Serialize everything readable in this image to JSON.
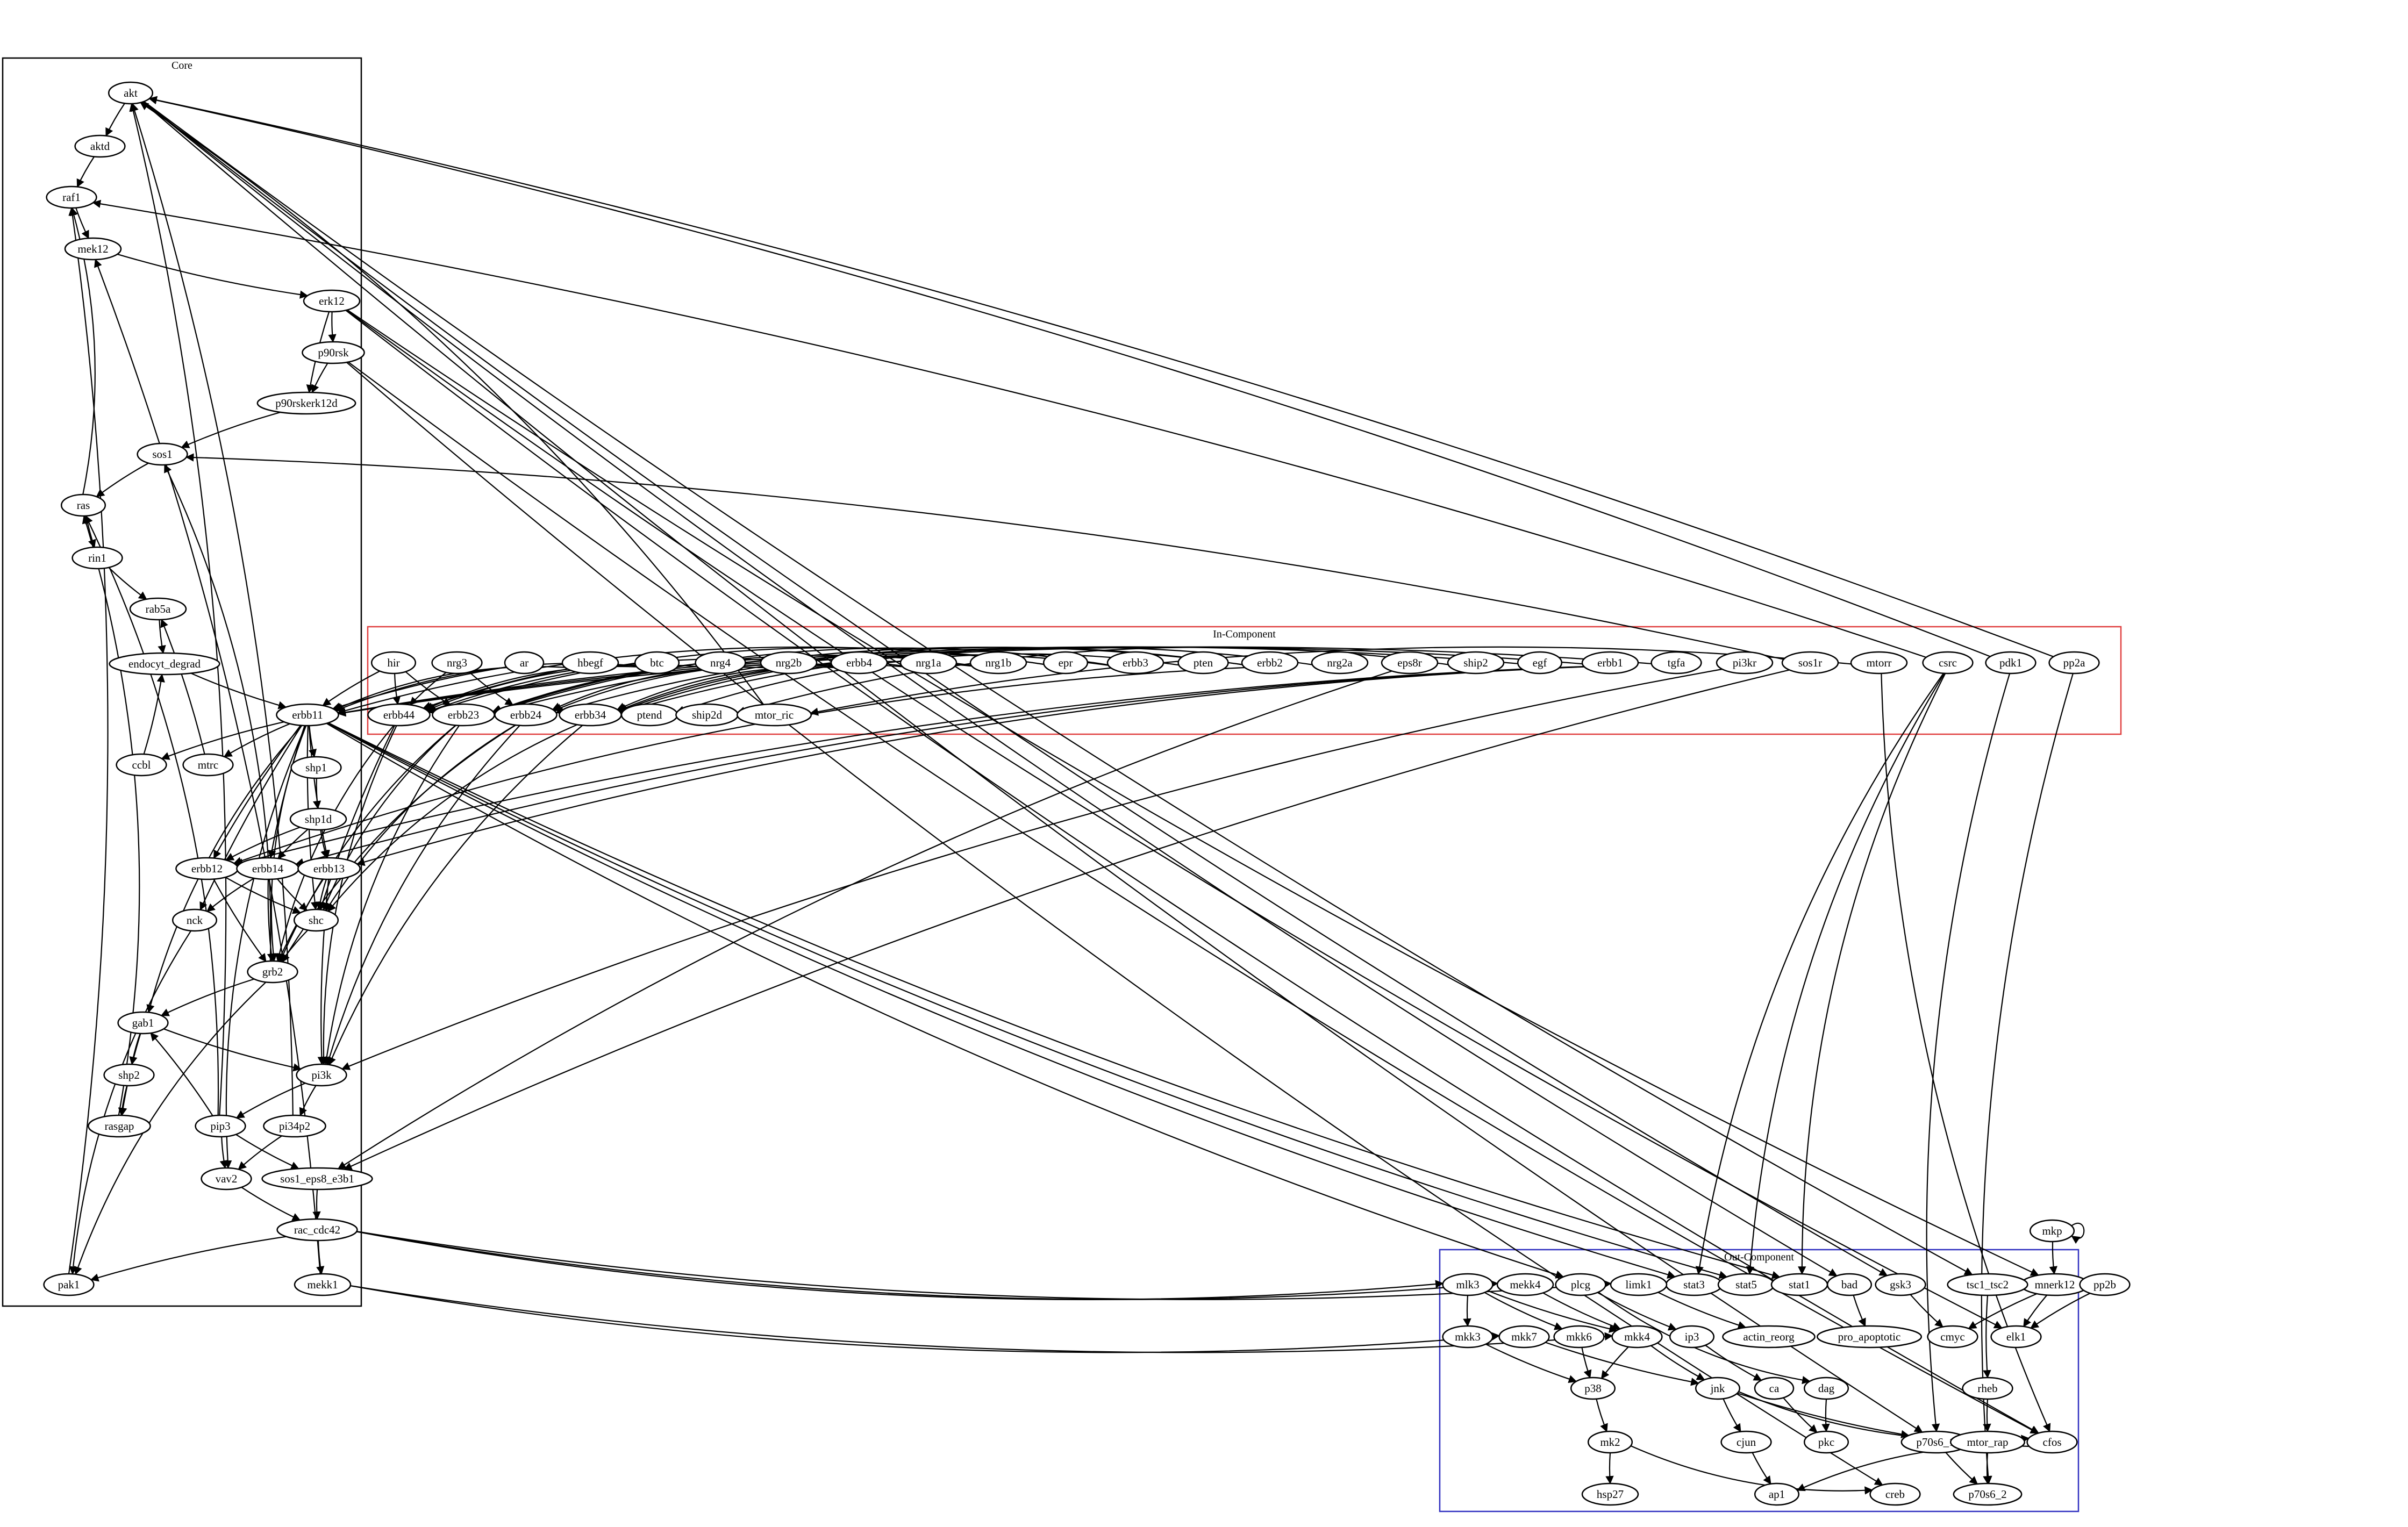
{
  "clusters": [
    {
      "id": "core",
      "label": "Core",
      "color": "#000000"
    },
    {
      "id": "in",
      "label": "In-Component",
      "color": "#e04040"
    },
    {
      "id": "out",
      "label": "Out-Component",
      "color": "#3030c0"
    }
  ],
  "nodes": [
    {
      "id": "akt",
      "label": "akt"
    },
    {
      "id": "aktd",
      "label": "aktd"
    },
    {
      "id": "raf1",
      "label": "raf1"
    },
    {
      "id": "mek12",
      "label": "mek12"
    },
    {
      "id": "erk12",
      "label": "erk12"
    },
    {
      "id": "p90rsk",
      "label": "p90rsk"
    },
    {
      "id": "p90rskerk12d",
      "label": "p90rskerk12d"
    },
    {
      "id": "sos1",
      "label": "sos1"
    },
    {
      "id": "ras",
      "label": "ras"
    },
    {
      "id": "rin1",
      "label": "rin1"
    },
    {
      "id": "rab5a",
      "label": "rab5a"
    },
    {
      "id": "endocyt_degrad",
      "label": "endocyt_degrad"
    },
    {
      "id": "erbb11",
      "label": "erbb11"
    },
    {
      "id": "cbl",
      "label": "ccbl"
    },
    {
      "id": "mtrc",
      "label": "mtrc"
    },
    {
      "id": "shp1",
      "label": "shp1"
    },
    {
      "id": "shp1d",
      "label": "shp1d"
    },
    {
      "id": "erbb12",
      "label": "erbb12"
    },
    {
      "id": "erbb14",
      "label": "erbb14"
    },
    {
      "id": "erbb13",
      "label": "erbb13"
    },
    {
      "id": "nck",
      "label": "nck"
    },
    {
      "id": "shc",
      "label": "shc"
    },
    {
      "id": "grb2",
      "label": "grb2"
    },
    {
      "id": "gab1",
      "label": "gab1"
    },
    {
      "id": "shp2",
      "label": "shp2"
    },
    {
      "id": "rasgap",
      "label": "rasgap"
    },
    {
      "id": "pi3k",
      "label": "pi3k"
    },
    {
      "id": "pip3",
      "label": "pip3"
    },
    {
      "id": "pi34p2",
      "label": "pi34p2"
    },
    {
      "id": "vav2",
      "label": "vav2"
    },
    {
      "id": "sos1_eps8_e3b1",
      "label": "sos1_eps8_e3b1"
    },
    {
      "id": "rac_cdc42",
      "label": "rac_cdc42"
    },
    {
      "id": "pak1",
      "label": "pak1"
    },
    {
      "id": "mekk1",
      "label": "mekk1"
    },
    {
      "id": "hir",
      "label": "hir"
    },
    {
      "id": "nrg3",
      "label": "nrg3"
    },
    {
      "id": "ar",
      "label": "ar"
    },
    {
      "id": "hbegf",
      "label": "hbegf"
    },
    {
      "id": "btc",
      "label": "btc"
    },
    {
      "id": "nrg4",
      "label": "nrg4"
    },
    {
      "id": "nrg2b",
      "label": "nrg2b"
    },
    {
      "id": "erbb4",
      "label": "erbb4"
    },
    {
      "id": "nrg1a",
      "label": "nrg1a"
    },
    {
      "id": "nrg1b",
      "label": "nrg1b"
    },
    {
      "id": "epr",
      "label": "epr"
    },
    {
      "id": "erbb3",
      "label": "erbb3"
    },
    {
      "id": "pten",
      "label": "pten"
    },
    {
      "id": "erbb2",
      "label": "erbb2"
    },
    {
      "id": "nrg2a",
      "label": "nrg2a"
    },
    {
      "id": "eps8r",
      "label": "eps8r"
    },
    {
      "id": "ship2",
      "label": "ship2"
    },
    {
      "id": "egf",
      "label": "egf"
    },
    {
      "id": "erbb1",
      "label": "erbb1"
    },
    {
      "id": "tgfa",
      "label": "tgfa"
    },
    {
      "id": "pi3kr",
      "label": "pi3kr"
    },
    {
      "id": "sos1r",
      "label": "sos1r"
    },
    {
      "id": "mtorr",
      "label": "mtorr"
    },
    {
      "id": "csrc",
      "label": "csrc"
    },
    {
      "id": "pdk1",
      "label": "pdk1"
    },
    {
      "id": "pp2a",
      "label": "pp2a"
    },
    {
      "id": "erbb44",
      "label": "erbb44"
    },
    {
      "id": "erbb23",
      "label": "erbb23"
    },
    {
      "id": "erbb24",
      "label": "erbb24"
    },
    {
      "id": "erbb34",
      "label": "erbb34"
    },
    {
      "id": "ptend",
      "label": "ptend"
    },
    {
      "id": "ship2d",
      "label": "ship2d"
    },
    {
      "id": "mtor_ric",
      "label": "mtor_ric"
    },
    {
      "id": "mkp",
      "label": "mkp"
    },
    {
      "id": "stat3",
      "label": "stat3"
    },
    {
      "id": "stat5",
      "label": "stat5"
    },
    {
      "id": "stat1",
      "label": "stat1"
    },
    {
      "id": "bad",
      "label": "bad"
    },
    {
      "id": "gsk3",
      "label": "gsk3"
    },
    {
      "id": "mekk4",
      "label": "mekk4"
    },
    {
      "id": "plcg",
      "label": "plcg"
    },
    {
      "id": "limk1",
      "label": "limk1"
    },
    {
      "id": "mlk3",
      "label": "mlk3"
    },
    {
      "id": "mkk3",
      "label": "mkk3"
    },
    {
      "id": "mkk7",
      "label": "mkk7"
    },
    {
      "id": "mkk6",
      "label": "mkk6"
    },
    {
      "id": "mkk4",
      "label": "mkk4"
    },
    {
      "id": "ip3",
      "label": "ip3"
    },
    {
      "id": "actin_reorg",
      "label": "actin_reorg"
    },
    {
      "id": "pro_apoptotic",
      "label": "pro_apoptotic"
    },
    {
      "id": "mnerk12",
      "label": "mnerk12"
    },
    {
      "id": "tsc1_tsc2",
      "label": "tsc1_tsc2"
    },
    {
      "id": "pp2b",
      "label": "pp2b"
    },
    {
      "id": "cmyc",
      "label": "cmyc"
    },
    {
      "id": "elk1",
      "label": "elk1"
    },
    {
      "id": "p38",
      "label": "p38"
    },
    {
      "id": "jnk",
      "label": "jnk"
    },
    {
      "id": "ca",
      "label": "ca"
    },
    {
      "id": "dag",
      "label": "dag"
    },
    {
      "id": "rheb",
      "label": "rheb"
    },
    {
      "id": "mk2",
      "label": "mk2"
    },
    {
      "id": "cjun",
      "label": "cjun"
    },
    {
      "id": "pkc",
      "label": "pkc"
    },
    {
      "id": "p70s6_1",
      "label": "p70s6_1"
    },
    {
      "id": "mtor_rap",
      "label": "mtor_rap"
    },
    {
      "id": "cfos",
      "label": "cfos"
    },
    {
      "id": "hsp27",
      "label": "hsp27"
    },
    {
      "id": "ap1",
      "label": "ap1"
    },
    {
      "id": "creb",
      "label": "creb"
    },
    {
      "id": "p70s6_2",
      "label": "p70s6_2"
    }
  ],
  "edges": [
    [
      "akt",
      "aktd"
    ],
    [
      "aktd",
      "raf1"
    ],
    [
      "raf1",
      "mek12"
    ],
    [
      "mek12",
      "erk12"
    ],
    [
      "erk12",
      "p90rsk"
    ],
    [
      "erk12",
      "p90rskerk12d"
    ],
    [
      "p90rsk",
      "p90rskerk12d"
    ],
    [
      "p90rskerk12d",
      "sos1"
    ],
    [
      "sos1",
      "ras"
    ],
    [
      "ras",
      "rin1"
    ],
    [
      "rin1",
      "rab5a"
    ],
    [
      "rab5a",
      "endocyt_degrad"
    ],
    [
      "endocyt_degrad",
      "erbb11"
    ],
    [
      "ras",
      "raf1"
    ],
    [
      "erbb11",
      "cbl"
    ],
    [
      "cbl",
      "endocyt_degrad"
    ],
    [
      "erbb11",
      "mtrc"
    ],
    [
      "mtrc",
      "rab5a"
    ],
    [
      "erbb11",
      "shp1"
    ],
    [
      "shp1",
      "shp1d"
    ],
    [
      "shp1d",
      "erbb12"
    ],
    [
      "shp1d",
      "erbb13"
    ],
    [
      "shp1d",
      "erbb14"
    ],
    [
      "erbb11",
      "erbb12"
    ],
    [
      "erbb11",
      "erbb13"
    ],
    [
      "erbb11",
      "erbb14"
    ],
    [
      "erbb11",
      "nck"
    ],
    [
      "erbb11",
      "shc"
    ],
    [
      "erbb11",
      "grb2"
    ],
    [
      "erbb11",
      "gab1"
    ],
    [
      "erbb11",
      "vav2"
    ],
    [
      "erbb12",
      "shc"
    ],
    [
      "erbb12",
      "grb2"
    ],
    [
      "erbb14",
      "nck"
    ],
    [
      "erbb14",
      "shc"
    ],
    [
      "erbb14",
      "grb2"
    ],
    [
      "erbb13",
      "shc"
    ],
    [
      "erbb13",
      "grb2"
    ],
    [
      "erbb13",
      "pi3k"
    ],
    [
      "shc",
      "grb2"
    ],
    [
      "nck",
      "pak1"
    ],
    [
      "grb2",
      "gab1"
    ],
    [
      "grb2",
      "sos1"
    ],
    [
      "grb2",
      "pak1"
    ],
    [
      "gab1",
      "shp2"
    ],
    [
      "gab1",
      "pi3k"
    ],
    [
      "gab1",
      "rasgap"
    ],
    [
      "shp2",
      "rasgap"
    ],
    [
      "rasgap",
      "ras"
    ],
    [
      "pi3k",
      "pip3"
    ],
    [
      "pi3k",
      "pi34p2"
    ],
    [
      "pip3",
      "vav2"
    ],
    [
      "pip3",
      "gab1"
    ],
    [
      "pip3",
      "akt"
    ],
    [
      "pip3",
      "sos1_eps8_e3b1"
    ],
    [
      "pi34p2",
      "vav2"
    ],
    [
      "pi34p2",
      "akt"
    ],
    [
      "vav2",
      "rac_cdc42"
    ],
    [
      "sos1_eps8_e3b1",
      "rac_cdc42"
    ],
    [
      "rac_cdc42",
      "pak1"
    ],
    [
      "rac_cdc42",
      "mekk1"
    ],
    [
      "pak1",
      "raf1"
    ],
    [
      "mekk1",
      "mek12"
    ],
    [
      "pip3",
      "ras"
    ],
    [
      "hir",
      "erbb11"
    ],
    [
      "hir",
      "erbb44"
    ],
    [
      "hir",
      "erbb23"
    ],
    [
      "nrg3",
      "erbb44"
    ],
    [
      "nrg3",
      "erbb24"
    ],
    [
      "ar",
      "erbb11"
    ],
    [
      "hbegf",
      "erbb11"
    ],
    [
      "hbegf",
      "erbb44"
    ],
    [
      "btc",
      "erbb11"
    ],
    [
      "btc",
      "erbb44"
    ],
    [
      "nrg4",
      "erbb44"
    ],
    [
      "nrg2b",
      "erbb24"
    ],
    [
      "erbb4",
      "erbb44"
    ],
    [
      "erbb4",
      "erbb24"
    ],
    [
      "erbb4",
      "erbb34"
    ],
    [
      "nrg1a",
      "erbb23"
    ],
    [
      "nrg1a",
      "erbb34"
    ],
    [
      "nrg1b",
      "erbb23"
    ],
    [
      "nrg1b",
      "erbb34"
    ],
    [
      "epr",
      "erbb11"
    ],
    [
      "epr",
      "erbb44"
    ],
    [
      "erbb3",
      "erbb23"
    ],
    [
      "erbb3",
      "erbb34"
    ],
    [
      "pten",
      "ptend"
    ],
    [
      "erbb2",
      "erbb23"
    ],
    [
      "erbb2",
      "erbb24"
    ],
    [
      "erbb2",
      "erbb12"
    ],
    [
      "nrg2a",
      "erbb34"
    ],
    [
      "eps8r",
      "sos1_eps8_e3b1"
    ],
    [
      "ship2",
      "ship2d"
    ],
    [
      "egf",
      "erbb11"
    ],
    [
      "erbb1",
      "erbb11"
    ],
    [
      "erbb1",
      "erbb12"
    ],
    [
      "erbb1",
      "erbb13"
    ],
    [
      "erbb1",
      "erbb14"
    ],
    [
      "tgfa",
      "erbb11"
    ],
    [
      "pi3kr",
      "pi3k"
    ],
    [
      "sos1r",
      "sos1"
    ],
    [
      "sos1r",
      "sos1_eps8_e3b1"
    ],
    [
      "mtorr",
      "mtor_ric"
    ],
    [
      "mtorr",
      "cfos"
    ],
    [
      "csrc",
      "raf1"
    ],
    [
      "csrc",
      "stat3"
    ],
    [
      "csrc",
      "stat5"
    ],
    [
      "csrc",
      "stat1"
    ],
    [
      "pdk1",
      "akt"
    ],
    [
      "pdk1",
      "p70s6_1"
    ],
    [
      "pp2a",
      "akt"
    ],
    [
      "pp2a",
      "p70s6_2"
    ],
    [
      "mtor_ric",
      "akt"
    ],
    [
      "erbb44",
      "shc"
    ],
    [
      "erbb44",
      "grb2"
    ],
    [
      "erbb44",
      "pi3k"
    ],
    [
      "erbb23",
      "pi3k"
    ],
    [
      "erbb23",
      "shc"
    ],
    [
      "erbb23",
      "grb2"
    ],
    [
      "erbb24",
      "shc"
    ],
    [
      "erbb24",
      "grb2"
    ],
    [
      "erbb24",
      "pi3k"
    ],
    [
      "erbb34",
      "pi3k"
    ],
    [
      "erbb34",
      "shc"
    ],
    [
      "erbb11",
      "stat3"
    ],
    [
      "erbb11",
      "stat5"
    ],
    [
      "erbb11",
      "stat1"
    ],
    [
      "erbb11",
      "plcg"
    ],
    [
      "erk12",
      "cfos"
    ],
    [
      "erk12",
      "mnerk12"
    ],
    [
      "erk12",
      "elk1"
    ],
    [
      "p90rsk",
      "creb"
    ],
    [
      "p90rsk",
      "cfos"
    ],
    [
      "akt",
      "bad"
    ],
    [
      "akt",
      "gsk3"
    ],
    [
      "akt",
      "tsc1_tsc2"
    ],
    [
      "akt",
      "p70s6_1"
    ],
    [
      "mkp",
      "mkp"
    ],
    [
      "mkp",
      "mnerk12"
    ],
    [
      "rac_cdc42",
      "mekk4"
    ],
    [
      "rac_cdc42",
      "mlk3"
    ],
    [
      "rac_cdc42",
      "limk1"
    ],
    [
      "mekk1",
      "mkk4"
    ],
    [
      "mekk1",
      "mkk7"
    ],
    [
      "mlk3",
      "mkk3"
    ],
    [
      "mlk3",
      "mkk6"
    ],
    [
      "mlk3",
      "mkk4"
    ],
    [
      "mekk4",
      "mkk4"
    ],
    [
      "mkk3",
      "p38"
    ],
    [
      "mkk6",
      "p38"
    ],
    [
      "mkk4",
      "p38"
    ],
    [
      "mkk4",
      "jnk"
    ],
    [
      "mkk7",
      "jnk"
    ],
    [
      "plcg",
      "ip3"
    ],
    [
      "plcg",
      "dag"
    ],
    [
      "ip3",
      "ca"
    ],
    [
      "ca",
      "pkc"
    ],
    [
      "dag",
      "pkc"
    ],
    [
      "limk1",
      "actin_reorg"
    ],
    [
      "bad",
      "pro_apoptotic"
    ],
    [
      "gsk3",
      "cmyc"
    ],
    [
      "mnerk12",
      "cmyc"
    ],
    [
      "mnerk12",
      "elk1"
    ],
    [
      "tsc1_tsc2",
      "rheb"
    ],
    [
      "pp2b",
      "elk1"
    ],
    [
      "rheb",
      "mtor_rap"
    ],
    [
      "mtor_rap",
      "p70s6_1"
    ],
    [
      "mtor_rap",
      "p70s6_2"
    ],
    [
      "p38",
      "mk2"
    ],
    [
      "mk2",
      "hsp27"
    ],
    [
      "mk2",
      "creb"
    ],
    [
      "jnk",
      "cjun"
    ],
    [
      "jnk",
      "p70s6_1"
    ],
    [
      "jnk",
      "cfos"
    ],
    [
      "cjun",
      "ap1"
    ],
    [
      "cfos",
      "ap1"
    ],
    [
      "p70s6_1",
      "p70s6_2"
    ]
  ]
}
